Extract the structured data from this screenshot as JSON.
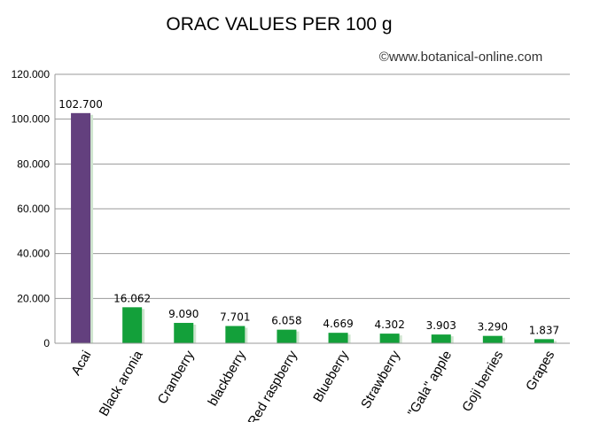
{
  "chart_data": {
    "type": "bar",
    "title": "ORAC VALUES PER 100 g",
    "credit": "©www.botanical-online.com",
    "categories": [
      "Acai",
      "Black aronia",
      "Cranberry",
      "blackberry",
      "Red raspberry",
      "Blueberry",
      "Strawberry",
      "\"Gala\" apple",
      "Goji berries",
      "Grapes"
    ],
    "values": [
      102700,
      16062,
      9090,
      7701,
      6058,
      4669,
      4302,
      3903,
      3290,
      1837
    ],
    "value_labels": [
      "102.700",
      "16.062",
      "9.090",
      "7.701",
      "6.058",
      "4.669",
      "4.302",
      "3.903",
      "3.290",
      "1.837"
    ],
    "yticks": [
      0,
      20000,
      40000,
      60000,
      80000,
      100000,
      120000
    ],
    "ytick_labels": [
      "0",
      "20.000",
      "40.000",
      "60.000",
      "80.000",
      "100.000",
      "120.000"
    ],
    "ylim": [
      0,
      120000
    ],
    "grid": true,
    "legend": "none",
    "colors": {
      "highlight": "#63407e",
      "bar": "#13a03a",
      "bar_shadow": "#cfe5cf",
      "grid": "#9a9a9a"
    }
  }
}
